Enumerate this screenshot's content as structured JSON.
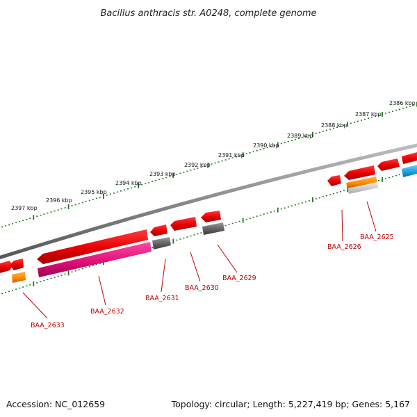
{
  "title": "Bacillus anthracis str. A0248, complete genome",
  "footer": {
    "accession": "Accession: NC_012659",
    "summary": "Topology: circular; Length: 5,227,419 bp; Genes: 5,167"
  },
  "colors": {
    "backbone": "#8a8a8a",
    "tick_green": "#1e7a1e",
    "gene_red": "#e80000",
    "gene_magenta": "#e0107a",
    "gene_gray": "#666666",
    "gene_orange": "#ff8c00",
    "gene_blue": "#1aa3e0",
    "label_red": "#c00000"
  },
  "ticks": [
    {
      "label": "2397 kbp"
    },
    {
      "label": "2396 kbp"
    },
    {
      "label": "2395 kbp"
    },
    {
      "label": "2394 kbp"
    },
    {
      "label": "2393 kbp"
    },
    {
      "label": "2392 kbp"
    },
    {
      "label": "2391 kbp"
    },
    {
      "label": "2390 kbp"
    },
    {
      "label": "2389 kbp"
    },
    {
      "label": "2388 kbp"
    },
    {
      "label": "2387 kbp"
    },
    {
      "label": "2386 kbp"
    }
  ],
  "gene_labels": [
    {
      "id": "BAA_2633"
    },
    {
      "id": "BAA_2632"
    },
    {
      "id": "BAA_2631"
    },
    {
      "id": "BAA_2630"
    },
    {
      "id": "BAA_2629"
    },
    {
      "id": "BAA_2626"
    },
    {
      "id": "BAA_2625"
    }
  ]
}
